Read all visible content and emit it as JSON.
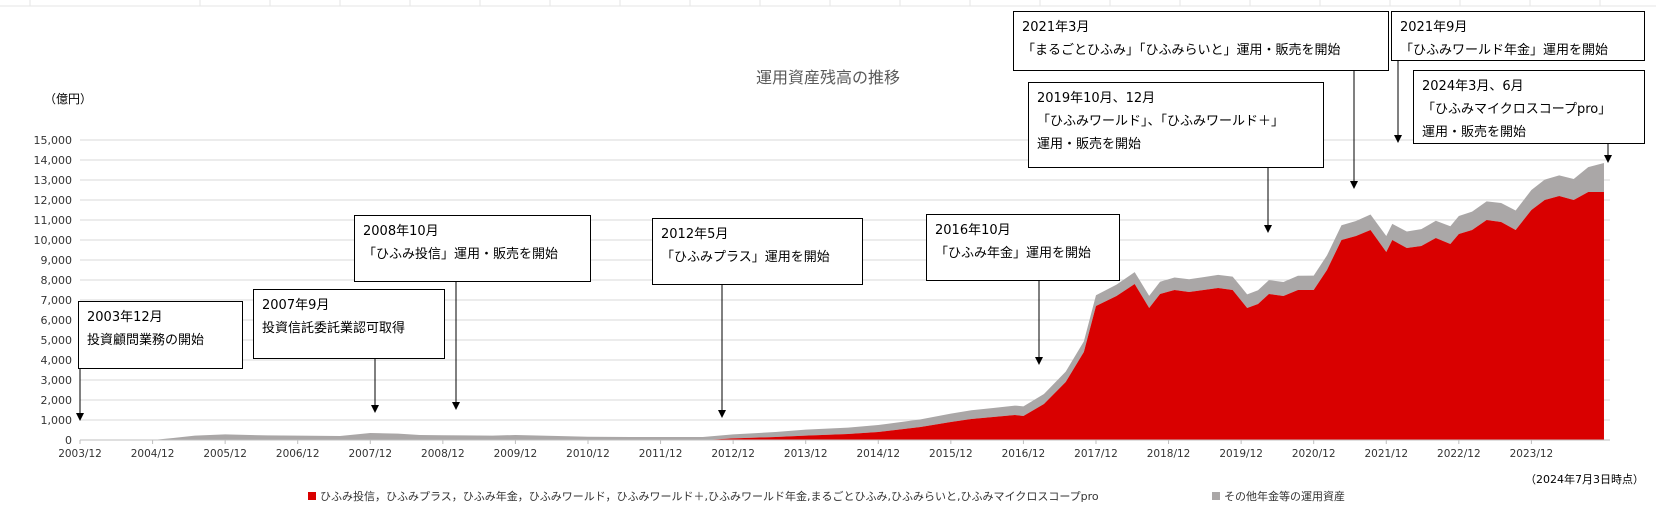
{
  "chart_data": {
    "type": "area",
    "stacked": true,
    "title": "運用資産残高の推移",
    "unit_label": "（億円）",
    "as_of": "（2024年7月3日時点）",
    "ylim": [
      0,
      15000
    ],
    "yticks": [
      "0",
      "1,000",
      "2,000",
      "3,000",
      "4,000",
      "5,000",
      "6,000",
      "7,000",
      "8,000",
      "9,000",
      "10,000",
      "11,000",
      "12,000",
      "13,000",
      "14,000",
      "15,000"
    ],
    "xlim": [
      2003.917,
      2025.0
    ],
    "xticks": [
      "2003/12",
      "2004/12",
      "2005/12",
      "2006/12",
      "2007/12",
      "2008/12",
      "2009/12",
      "2010/12",
      "2011/12",
      "2012/12",
      "2013/12",
      "2014/12",
      "2015/12",
      "2016/12",
      "2017/12",
      "2018/12",
      "2019/12",
      "2020/12",
      "2021/12",
      "2022/12",
      "2023/12"
    ],
    "grid": true,
    "colors": {
      "main": "#d90000",
      "other": "#aaa7a7",
      "grid": "#d9d9d9",
      "axis": "#bfbfbf"
    },
    "series": [
      {
        "name": "ひふみ投信，ひふみプラス，ひふみ年金，ひふみワールド，ひふみワールド＋,ひふみワールド年金,まるごとひふみ,ひふみらいと,ひふみマイクロスコープpro",
        "x": [
          2003.917,
          2012.5,
          2012.917,
          2013.5,
          2013.917,
          2014.5,
          2014.917,
          2015.5,
          2015.917,
          2016.2,
          2016.5,
          2016.8,
          2016.917,
          2017.2,
          2017.5,
          2017.75,
          2017.917,
          2018.2,
          2018.45,
          2018.55,
          2018.65,
          2018.8,
          2019.0,
          2019.2,
          2019.4,
          2019.6,
          2019.8,
          2020.0,
          2020.15,
          2020.3,
          2020.5,
          2020.7,
          2020.917,
          2021.1,
          2021.3,
          2021.5,
          2021.7,
          2021.917,
          2022.0,
          2022.2,
          2022.4,
          2022.6,
          2022.8,
          2022.917,
          2023.1,
          2023.3,
          2023.5,
          2023.7,
          2023.917,
          2024.1,
          2024.3,
          2024.5,
          2024.7,
          2024.917
        ],
        "y": [
          0,
          0,
          80,
          150,
          220,
          300,
          400,
          650,
          900,
          1050,
          1150,
          1250,
          1200,
          1800,
          2900,
          4400,
          6700,
          7200,
          7800,
          7200,
          6600,
          7300,
          7500,
          7400,
          7500,
          7600,
          7500,
          6600,
          6800,
          7300,
          7200,
          7500,
          7500,
          8500,
          10000,
          10200,
          10500,
          9400,
          10000,
          9600,
          9700,
          10100,
          9800,
          10300,
          10500,
          11000,
          10900,
          10500,
          11500,
          12000,
          12200,
          12000,
          12400,
          12400
        ]
      },
      {
        "name": "その他年金等の運用資産",
        "x": [
          2003.917,
          2004.917,
          2005.2,
          2005.5,
          2005.917,
          2006.5,
          2006.917,
          2007.5,
          2007.917,
          2008.3,
          2008.6,
          2008.917,
          2009.2,
          2009.6,
          2009.917,
          2010.5,
          2010.917,
          2011.5,
          2011.917,
          2012.5,
          2012.917,
          2013.5,
          2013.917,
          2014.5,
          2014.917,
          2015.5,
          2015.917,
          2016.5,
          2016.917,
          2017.5,
          2017.917,
          2018.5,
          2018.917,
          2019.5,
          2019.917,
          2020.5,
          2020.917,
          2021.5,
          2021.917,
          2022.5,
          2022.917,
          2023.5,
          2023.917,
          2024.5,
          2024.917
        ],
        "y": [
          0,
          0,
          100,
          220,
          280,
          230,
          220,
          200,
          350,
          320,
          250,
          240,
          230,
          220,
          250,
          200,
          160,
          150,
          150,
          150,
          200,
          250,
          300,
          320,
          350,
          380,
          420,
          450,
          480,
          520,
          540,
          600,
          620,
          650,
          680,
          700,
          720,
          750,
          800,
          850,
          900,
          950,
          1000,
          1050,
          1450
        ]
      }
    ]
  },
  "annotations": [
    {
      "lines": [
        "2003年12月",
        "投資顧問業務の開始"
      ]
    },
    {
      "lines": [
        "2007年9月",
        "投資信託委託業認可取得"
      ]
    },
    {
      "lines": [
        "2008年10月",
        "「ひふみ投信」運用・販売を開始"
      ]
    },
    {
      "lines": [
        "2012年5月",
        "「ひふみプラス」運用を開始"
      ]
    },
    {
      "lines": [
        "2016年10月",
        "「ひふみ年金」運用を開始"
      ]
    },
    {
      "lines": [
        "2019年10月、12月",
        "「ひふみワールド」、「ひふみワールド＋」",
        "運用・販売を開始"
      ]
    },
    {
      "lines": [
        "2021年3月",
        "「まるごとひふみ」「ひふみらいと」運用・販売を開始"
      ]
    },
    {
      "lines": [
        "2021年9月",
        "「ひふみワールド年金」運用を開始"
      ]
    },
    {
      "lines": [
        "2024年3月、6月",
        "「ひふみマイクロスコープpro」",
        "運用・販売を開始"
      ]
    }
  ]
}
